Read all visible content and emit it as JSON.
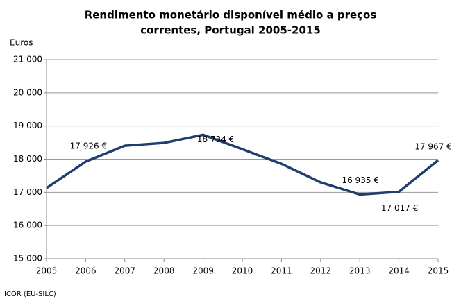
{
  "chart_data": {
    "type": "line",
    "title": [
      "Rendimento monetário disponível médio a preços",
      "correntes, Portugal 2005-2015"
    ],
    "ylabel": "Euros",
    "source": "ICOR (EU-SILC)",
    "x": [
      2005,
      2006,
      2007,
      2008,
      2009,
      2010,
      2011,
      2012,
      2013,
      2014,
      2015
    ],
    "values": [
      17130,
      17926,
      18406,
      18490,
      18734,
      18300,
      17860,
      17300,
      16935,
      17017,
      17967
    ],
    "value_labels": [
      null,
      "17 926 €",
      null,
      null,
      "18 734 €",
      null,
      null,
      null,
      "16 935 €",
      "17 017 €",
      "17 967 €"
    ],
    "color": "#1f3d6e",
    "xlim": [
      2005,
      2015
    ],
    "xticks": [
      2005,
      2006,
      2007,
      2008,
      2009,
      2010,
      2011,
      2012,
      2013,
      2014,
      2015
    ],
    "ylim": [
      15000,
      21000
    ],
    "yticks": [
      {
        "value": 15000,
        "label": "15 000"
      },
      {
        "value": 16000,
        "label": "16 000"
      },
      {
        "value": 17000,
        "label": "17 000"
      },
      {
        "value": 18000,
        "label": "18 000"
      },
      {
        "value": 19000,
        "label": "19 000"
      },
      {
        "value": 20000,
        "label": "20 000"
      },
      {
        "value": 21000,
        "label": "21 000"
      }
    ],
    "grid": true
  }
}
